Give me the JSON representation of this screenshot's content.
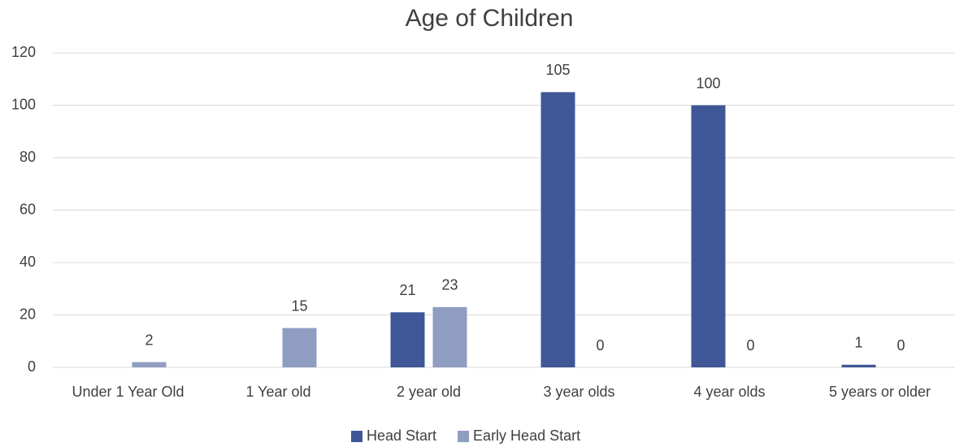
{
  "chart_data": {
    "type": "bar",
    "title": "Age of Children",
    "categories": [
      "Under 1 Year Old",
      "1 Year old",
      "2 year old",
      "3 year olds",
      "4 year olds",
      "5 years or older"
    ],
    "series": [
      {
        "name": "Head Start",
        "color": "#3f5797",
        "values": [
          null,
          null,
          21,
          105,
          100,
          1
        ]
      },
      {
        "name": "Early Head Start",
        "color": "#8f9dc2",
        "values": [
          2,
          15,
          23,
          0,
          0,
          0
        ]
      }
    ],
    "ylim": [
      0,
      120
    ],
    "yticks": [
      0,
      20,
      40,
      60,
      80,
      100,
      120
    ],
    "grid": true,
    "legend": "bottom"
  }
}
